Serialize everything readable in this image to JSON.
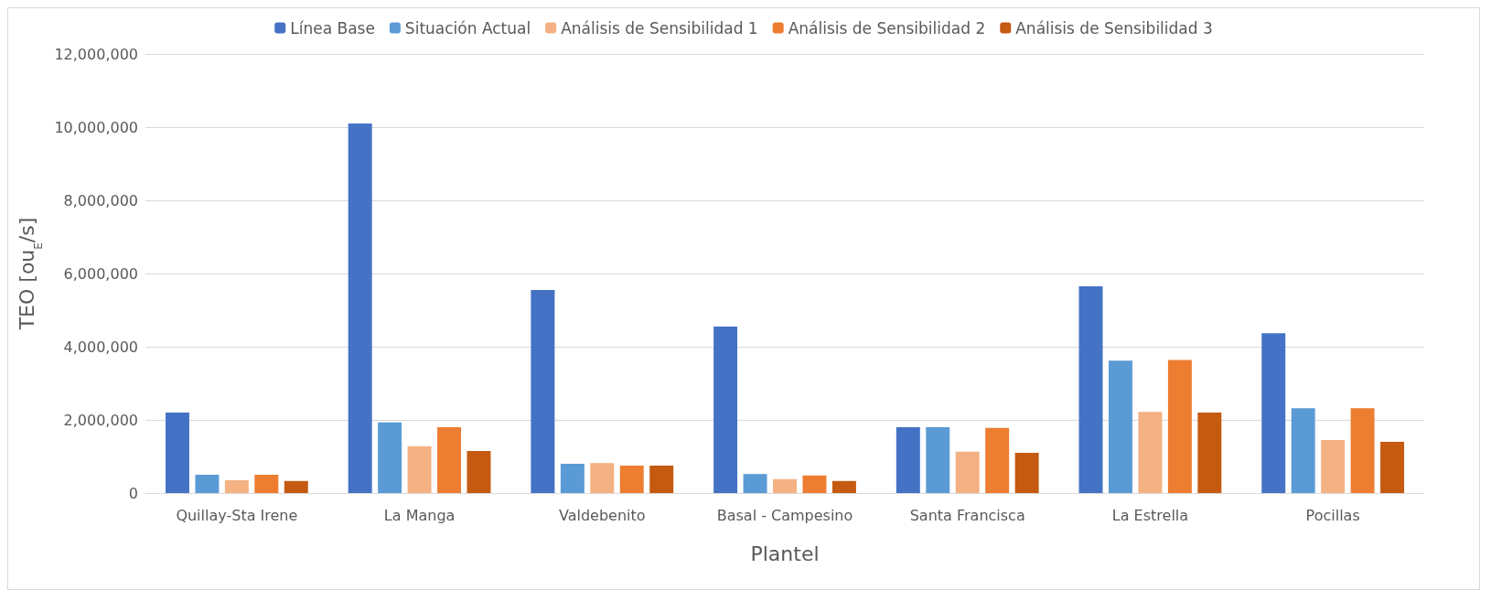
{
  "chart_data": {
    "type": "bar",
    "xlabel": "Plantel",
    "ylabel": "TEO [ou$_{E}$/s]",
    "categories": [
      "Quillay-Sta Irene",
      "La Manga",
      "Valdebenito",
      "Basal - Campesino",
      "Santa Francisca",
      "La Estrella",
      "Pocillas"
    ],
    "series": [
      {
        "name": "Línea Base",
        "color": "#4472c4",
        "values": [
          2200000,
          10100000,
          5550000,
          4550000,
          1800000,
          5650000,
          4370000
        ]
      },
      {
        "name": "Situación Actual",
        "color": "#5b9bd5",
        "values": [
          500000,
          1930000,
          800000,
          520000,
          1800000,
          3620000,
          2320000
        ]
      },
      {
        "name": "Análisis de Sensibilidad 1",
        "color": "#f4b183",
        "values": [
          350000,
          1280000,
          820000,
          380000,
          1130000,
          2220000,
          1450000
        ]
      },
      {
        "name": "Análisis de Sensibilidad 2",
        "color": "#ed7d31",
        "values": [
          500000,
          1800000,
          750000,
          480000,
          1780000,
          3640000,
          2320000
        ]
      },
      {
        "name": "Análisis de Sensibilidad 3",
        "color": "#c55a11",
        "values": [
          330000,
          1150000,
          750000,
          330000,
          1100000,
          2200000,
          1400000
        ]
      }
    ],
    "ylim": [
      0,
      12000000
    ],
    "yticks": [
      0,
      {
        "value": 2000000,
        "label": "2,000,000"
      },
      {
        "value": 4000000,
        "label": "4,000,000"
      },
      {
        "value": 6000000,
        "label": "6,000,000"
      },
      {
        "value": 8000000,
        "label": "8,000,000"
      },
      {
        "value": 10000000,
        "label": "10,000,000"
      },
      {
        "value": 12000000,
        "label": "12,000,000"
      }
    ],
    "grid": "y",
    "legend": "top"
  }
}
